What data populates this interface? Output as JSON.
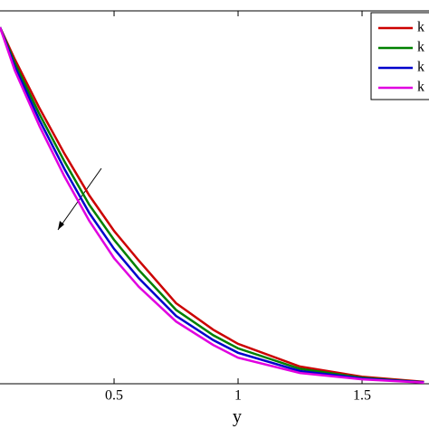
{
  "chart_data": {
    "type": "line",
    "x_label": "y",
    "x": [
      0.04,
      0.1,
      0.2,
      0.3,
      0.4,
      0.5,
      0.6,
      0.75,
      0.9,
      1,
      1.25,
      1.5,
      1.75
    ],
    "xlim": [
      0.04,
      1.77
    ],
    "xticks": [
      0.5,
      1,
      1.5
    ],
    "ylim": [
      0,
      1
    ],
    "series": [
      {
        "name": "k",
        "color": "#cc0000",
        "values": [
          0.956,
          0.87,
          0.738,
          0.617,
          0.505,
          0.41,
          0.33,
          0.216,
          0.145,
          0.107,
          0.046,
          0.019,
          0.005
        ]
      },
      {
        "name": "k",
        "color": "#008000",
        "values": [
          0.956,
          0.86,
          0.722,
          0.596,
          0.48,
          0.386,
          0.305,
          0.198,
          0.13,
          0.095,
          0.04,
          0.016,
          0.004
        ]
      },
      {
        "name": "k",
        "color": "#0000cc",
        "values": [
          0.956,
          0.85,
          0.706,
          0.576,
          0.458,
          0.362,
          0.283,
          0.182,
          0.117,
          0.083,
          0.034,
          0.014,
          0.004
        ]
      },
      {
        "name": "k",
        "color": "#e000e0",
        "values": [
          0.956,
          0.84,
          0.69,
          0.556,
          0.437,
          0.337,
          0.26,
          0.167,
          0.104,
          0.07,
          0.029,
          0.012,
          0.003
        ]
      }
    ]
  }
}
